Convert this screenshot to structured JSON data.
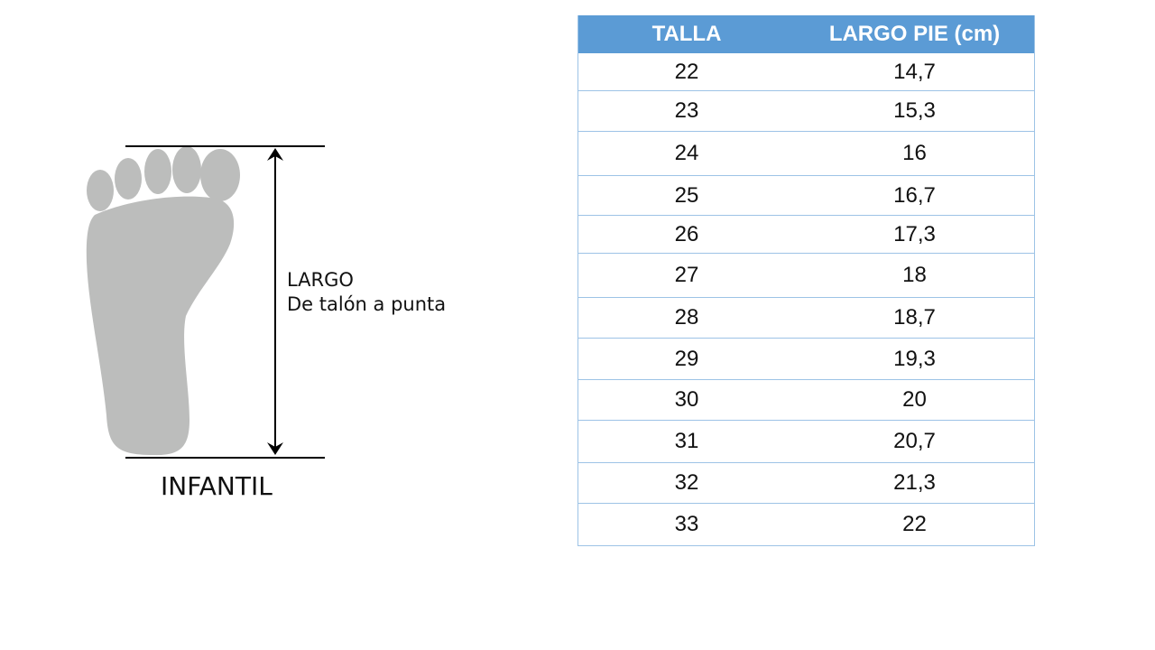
{
  "diagram": {
    "measure_label": "LARGO",
    "measure_sublabel": "De talón a punta",
    "category": "INFANTIL",
    "foot_color": "#bcbdbc"
  },
  "table": {
    "header_color": "#5b9bd5",
    "headers": [
      "TALLA",
      "LARGO PIE (cm)"
    ],
    "rows": [
      [
        "22",
        "14,7"
      ],
      [
        "23",
        "15,3"
      ],
      [
        "24",
        "16"
      ],
      [
        "25",
        "16,7"
      ],
      [
        "26",
        "17,3"
      ],
      [
        "27",
        "18"
      ],
      [
        "28",
        "18,7"
      ],
      [
        "29",
        "19,3"
      ],
      [
        "30",
        "20"
      ],
      [
        "31",
        "20,7"
      ],
      [
        "32",
        "21,3"
      ],
      [
        "33",
        "22"
      ]
    ]
  }
}
